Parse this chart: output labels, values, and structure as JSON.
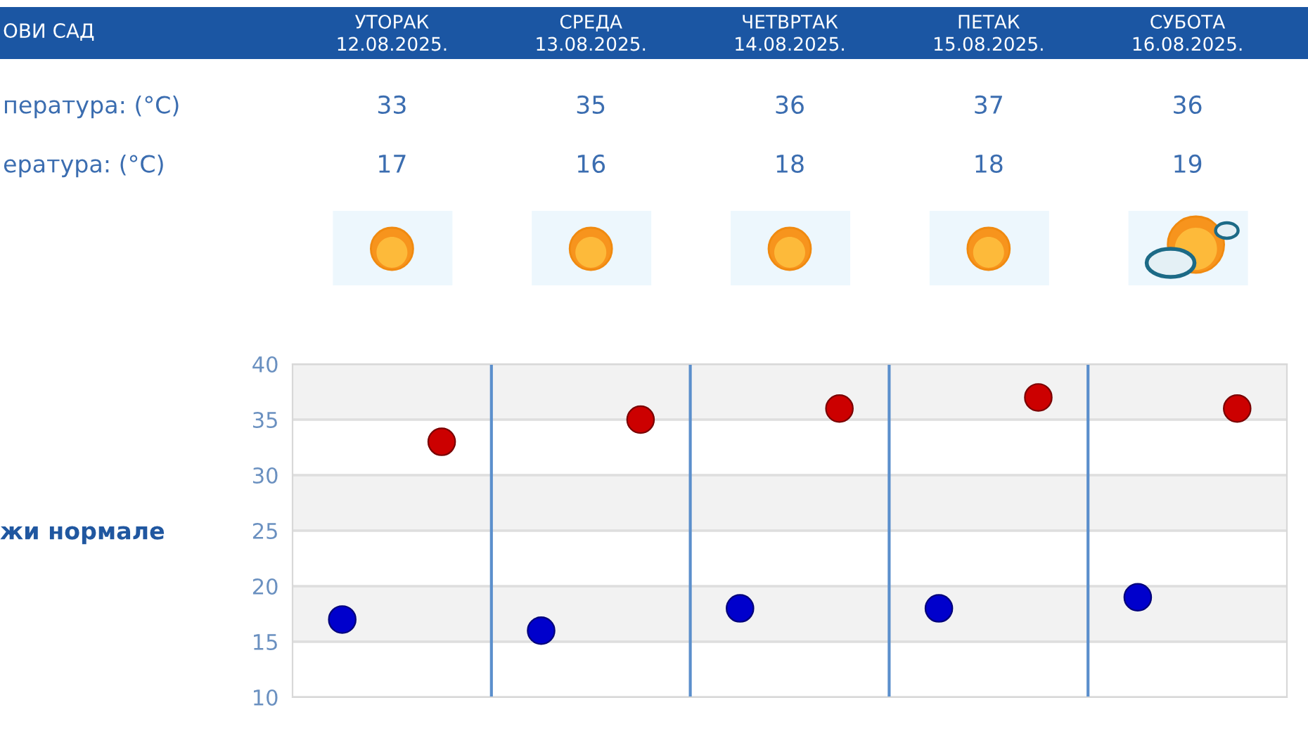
{
  "chart_data": {
    "type": "scatter",
    "title": "ОВИ САД",
    "categories": [
      null,
      null,
      null,
      null,
      null
    ],
    "series": [
      {
        "color": "#cc0000",
        "values": [
          33,
          35,
          36,
          37,
          36
        ]
      },
      {
        "color": "#0000cc",
        "values": [
          17,
          16,
          18,
          18,
          19
        ]
      }
    ],
    "ylim": [
      10,
      40
    ],
    "yticks": [
      10,
      15,
      20,
      25,
      30,
      35,
      40
    ],
    "grid": true,
    "marker": "circle",
    "data_labels": true,
    "bands": [
      {
        "axis": "y",
        "from": 15,
        "to": 20,
        "color": "#f2f2f2"
      },
      {
        "axis": "y",
        "from": 25,
        "to": 30,
        "color": "#f2f2f2"
      },
      {
        "axis": "y",
        "from": 35,
        "to": 40,
        "color": "#f2f2f2"
      }
    ],
    "annotations": [
      "УТОРАК\n12.08.2025.",
      "СРЕДА\n13.08.2025.",
      "ЧЕТВРТАК\n14.08.2025.",
      "ПЕТАК\n15.08.2025.",
      "СУБОТА\n16.08.2025.",
      "пература: (°C)",
      "ература: (°C)",
      "жи нормале"
    ]
  }
}
